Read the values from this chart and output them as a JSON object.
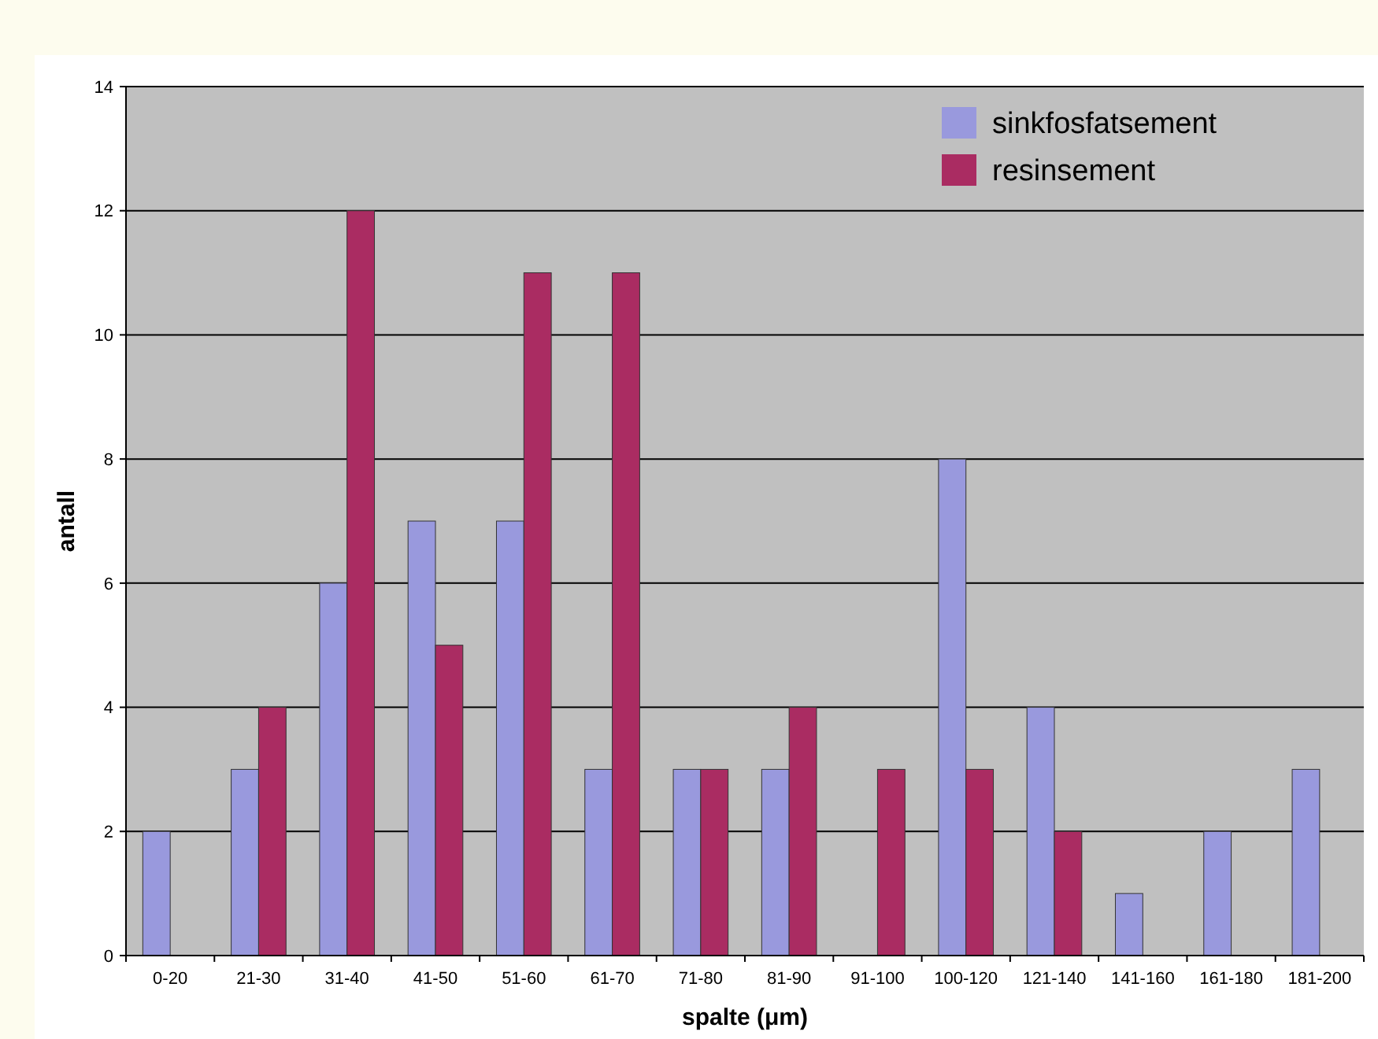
{
  "chart_data": {
    "type": "bar",
    "xlabel": "spalte (μm)",
    "ylabel": "antall",
    "categories": [
      "0-20",
      "21-30",
      "31-40",
      "41-50",
      "51-60",
      "61-70",
      "71-80",
      "81-90",
      "91-100",
      "100-120",
      "121-140",
      "141-160",
      "161-180",
      "181-200"
    ],
    "series": [
      {
        "name": "sinkfosfatsement",
        "color": "#9999dd",
        "values": [
          2,
          3,
          6,
          7,
          7,
          3,
          3,
          3,
          0,
          8,
          4,
          1,
          2,
          3
        ]
      },
      {
        "name": "resinsement",
        "color": "#aa2c62",
        "values": [
          0,
          4,
          12,
          5,
          11,
          11,
          3,
          4,
          3,
          3,
          2,
          0,
          0,
          0
        ]
      }
    ],
    "ylim": [
      0,
      14
    ],
    "yticks": [
      0,
      2,
      4,
      6,
      8,
      10,
      12,
      14
    ],
    "grid": "y",
    "legend": "top right"
  }
}
